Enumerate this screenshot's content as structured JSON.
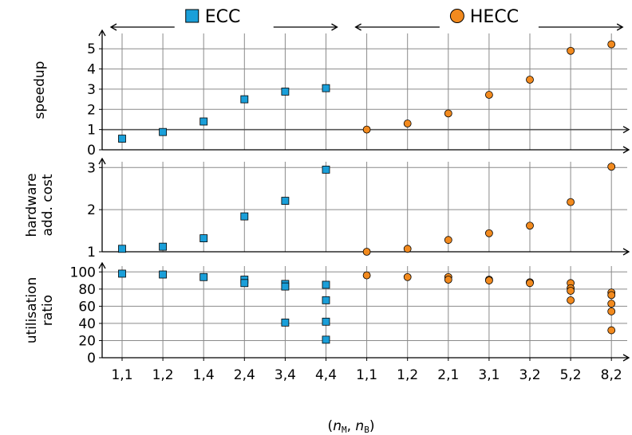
{
  "chart_data": {
    "type": "scatter",
    "x_categories": [
      "1,1",
      "1,2",
      "1,4",
      "2,4",
      "3,4",
      "4,4",
      "1,1",
      "1,2",
      "2,1",
      "3,1",
      "3,2",
      "5,2",
      "8,2"
    ],
    "x_label": "(nM, nB)",
    "groups": [
      {
        "name": "ECC",
        "color": "#1a9fd9",
        "marker": "square",
        "category_range": [
          0,
          5
        ]
      },
      {
        "name": "HECC",
        "color": "#f28a1e",
        "marker": "circle",
        "category_range": [
          6,
          12
        ]
      }
    ],
    "panels": [
      {
        "ylabel": [
          "speedup"
        ],
        "ylim": [
          0,
          5.6
        ],
        "yticks": [
          0,
          1,
          2,
          3,
          4,
          5
        ],
        "reference_line": 1,
        "series": [
          {
            "name": "ECC",
            "points": [
              [
                0,
                0.55
              ],
              [
                1,
                0.88
              ],
              [
                2,
                1.4
              ],
              [
                3,
                2.5
              ],
              [
                4,
                2.88
              ],
              [
                5,
                3.05
              ]
            ]
          },
          {
            "name": "HECC",
            "points": [
              [
                6,
                1.0
              ],
              [
                7,
                1.3
              ],
              [
                8,
                1.8
              ],
              [
                9,
                2.72
              ],
              [
                10,
                3.47
              ],
              [
                11,
                4.9
              ],
              [
                12,
                5.22
              ]
            ]
          }
        ]
      },
      {
        "ylabel": [
          "hardware",
          "add. cost"
        ],
        "ylim": [
          1,
          3.1
        ],
        "yticks": [
          1,
          2,
          3
        ],
        "series": [
          {
            "name": "ECC",
            "points": [
              [
                0,
                1.07
              ],
              [
                1,
                1.12
              ],
              [
                2,
                1.32
              ],
              [
                3,
                1.84
              ],
              [
                4,
                2.21
              ],
              [
                5,
                2.95
              ]
            ]
          },
          {
            "name": "HECC",
            "points": [
              [
                6,
                1.0
              ],
              [
                7,
                1.07
              ],
              [
                8,
                1.28
              ],
              [
                9,
                1.44
              ],
              [
                10,
                1.62
              ],
              [
                11,
                2.18
              ],
              [
                12,
                3.02
              ]
            ]
          }
        ]
      },
      {
        "ylabel": [
          "utilisation",
          "ratio"
        ],
        "ylim": [
          0,
          104
        ],
        "yticks": [
          0,
          20,
          40,
          60,
          80,
          100
        ],
        "series": [
          {
            "name": "ECC",
            "points": [
              [
                0,
                98
              ],
              [
                1,
                97
              ],
              [
                2,
                94
              ],
              [
                3,
                91
              ],
              [
                3,
                87
              ],
              [
                4,
                86
              ],
              [
                4,
                83
              ],
              [
                4,
                41
              ],
              [
                5,
                85
              ],
              [
                5,
                67
              ],
              [
                5,
                42
              ],
              [
                5,
                21
              ]
            ]
          },
          {
            "name": "HECC",
            "points": [
              [
                6,
                96
              ],
              [
                7,
                94
              ],
              [
                8,
                94
              ],
              [
                8,
                91
              ],
              [
                9,
                91
              ],
              [
                9,
                90
              ],
              [
                10,
                88
              ],
              [
                10,
                87
              ],
              [
                11,
                87
              ],
              [
                11,
                81
              ],
              [
                11,
                78
              ],
              [
                11,
                67
              ],
              [
                12,
                76
              ],
              [
                12,
                73
              ],
              [
                12,
                63
              ],
              [
                12,
                54
              ],
              [
                12,
                32
              ]
            ]
          }
        ]
      }
    ]
  }
}
